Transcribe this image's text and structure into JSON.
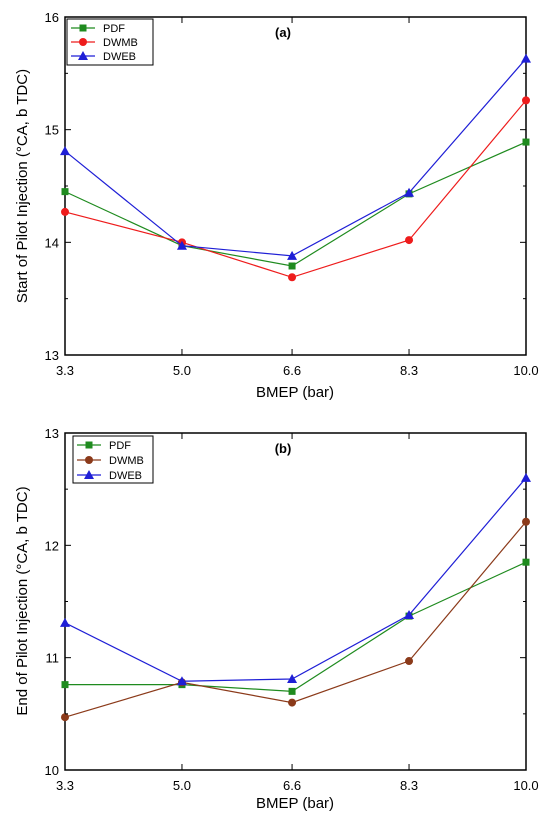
{
  "chart_data": [
    {
      "type": "line",
      "panel_label": "(a)",
      "xlabel": "BMEP (bar)",
      "ylabel": "Start of Pilot Injection (°CA, b TDC)",
      "x": [
        3.3,
        5.0,
        6.6,
        8.3,
        10.0
      ],
      "x_tick_labels": [
        "3.3",
        "5.0",
        "6.6",
        "8.3",
        "10.0"
      ],
      "xlim": [
        3.3,
        10.0
      ],
      "ylim": [
        13,
        16
      ],
      "y_ticks": [
        13,
        14,
        15,
        16
      ],
      "y_tick_labels": [
        "13",
        "14",
        "15",
        "16"
      ],
      "legend_position": "top-left",
      "grid": false,
      "series": [
        {
          "name": "PDF",
          "marker": "square",
          "color": "#1f8b1f",
          "values": [
            14.45,
            13.97,
            13.79,
            14.43,
            14.89
          ]
        },
        {
          "name": "DWMB",
          "marker": "circle",
          "color": "#ee1c1c",
          "values": [
            14.27,
            14.0,
            13.69,
            14.02,
            15.26
          ]
        },
        {
          "name": "DWEB",
          "marker": "triangle",
          "color": "#1f1fd6",
          "values": [
            14.81,
            13.97,
            13.88,
            14.44,
            15.63
          ]
        }
      ]
    },
    {
      "type": "line",
      "panel_label": "(b)",
      "xlabel": "BMEP (bar)",
      "ylabel": "End of Pilot Injection (°CA, b TDC)",
      "x": [
        3.3,
        5.0,
        6.6,
        8.3,
        10.0
      ],
      "x_tick_labels": [
        "3.3",
        "5.0",
        "6.6",
        "8.3",
        "10.0"
      ],
      "xlim": [
        3.3,
        10.0
      ],
      "ylim": [
        10,
        13
      ],
      "y_ticks": [
        10,
        11,
        12,
        13
      ],
      "y_tick_labels": [
        "10",
        "11",
        "12",
        "13"
      ],
      "legend_position": "top-left",
      "grid": false,
      "series": [
        {
          "name": "PDF",
          "marker": "square",
          "color": "#1f8b1f",
          "values": [
            10.76,
            10.76,
            10.7,
            11.37,
            11.85
          ]
        },
        {
          "name": "DWMB",
          "marker": "circle",
          "color": "#8b3a1a",
          "values": [
            10.47,
            10.78,
            10.6,
            10.97,
            12.21
          ]
        },
        {
          "name": "DWEB",
          "marker": "triangle",
          "color": "#1f1fd6",
          "values": [
            11.31,
            10.79,
            10.81,
            11.38,
            12.6
          ]
        }
      ]
    }
  ]
}
